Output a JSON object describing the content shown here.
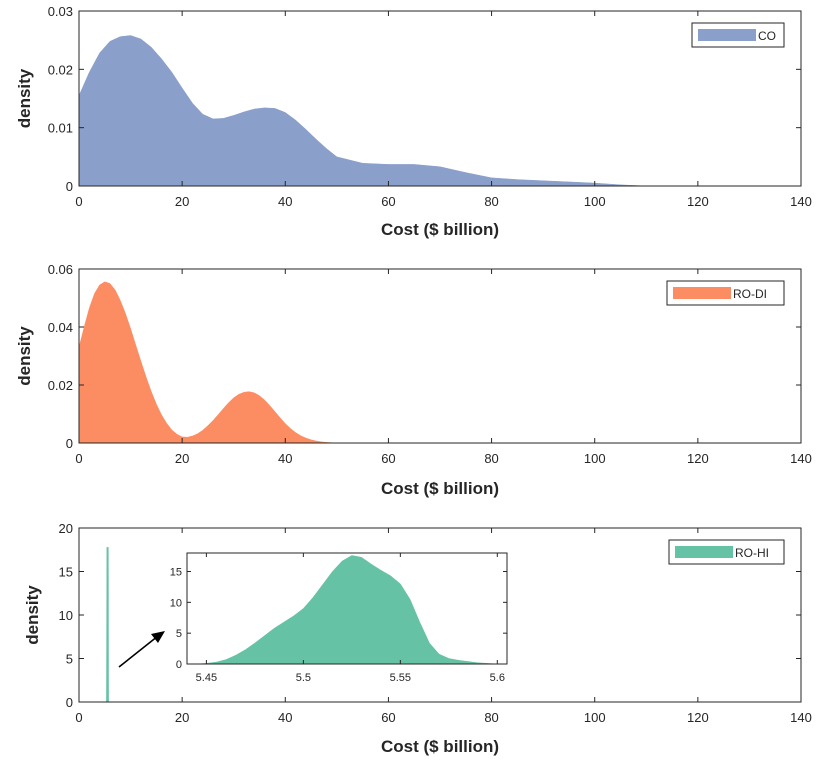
{
  "chart_data": [
    {
      "type": "area",
      "title": "",
      "xlabel": "Cost ($ billion)",
      "ylabel": "density",
      "xlim": [
        0,
        140
      ],
      "ylim": [
        0,
        0.03
      ],
      "xticks": [
        "0",
        "20",
        "40",
        "60",
        "80",
        "100",
        "120",
        "140"
      ],
      "yticks": [
        "0",
        "0.01",
        "0.02",
        "0.03"
      ],
      "legend": {
        "position": "top-right",
        "entries": [
          "CO"
        ]
      },
      "series": [
        {
          "name": "CO",
          "color": "#8B9FCB",
          "x": [
            0,
            2,
            4,
            6,
            8,
            10,
            12,
            14,
            16,
            18,
            20,
            22,
            24,
            26,
            28,
            30,
            32,
            34,
            36,
            38,
            40,
            42,
            44,
            46,
            48,
            50,
            55,
            60,
            65,
            70,
            75,
            80,
            85,
            90,
            95,
            100,
            105,
            110
          ],
          "y": [
            0.0155,
            0.0195,
            0.0228,
            0.0248,
            0.0256,
            0.0258,
            0.0252,
            0.0238,
            0.0218,
            0.0195,
            0.0168,
            0.0142,
            0.0123,
            0.0115,
            0.0116,
            0.0121,
            0.0127,
            0.0132,
            0.0134,
            0.0133,
            0.0126,
            0.0113,
            0.0097,
            0.008,
            0.0064,
            0.005,
            0.0039,
            0.0037,
            0.0037,
            0.0033,
            0.0023,
            0.0014,
            0.0011,
            0.0009,
            0.0007,
            0.0005,
            0.0002,
            0
          ]
        }
      ]
    },
    {
      "type": "area",
      "title": "",
      "xlabel": "Cost ($ billion)",
      "ylabel": "density",
      "xlim": [
        0,
        140
      ],
      "ylim": [
        0,
        0.06
      ],
      "xticks": [
        "0",
        "20",
        "40",
        "60",
        "80",
        "100",
        "120",
        "140"
      ],
      "yticks": [
        "0",
        "0.02",
        "0.04",
        "0.06"
      ],
      "legend": {
        "position": "top-right",
        "entries": [
          "RO-DI"
        ]
      },
      "series": [
        {
          "name": "RO-DI",
          "color": "#FC8D62",
          "x": [
            0,
            1,
            2,
            3,
            4,
            5,
            6,
            7,
            8,
            9,
            10,
            11,
            12,
            13,
            14,
            15,
            16,
            17,
            18,
            19,
            20,
            21,
            22,
            23,
            24,
            25,
            26,
            27,
            28,
            29,
            30,
            31,
            32,
            33,
            34,
            35,
            36,
            37,
            38,
            39,
            40,
            41,
            42,
            43,
            44,
            45,
            46,
            47,
            48,
            50
          ],
          "y": [
            0.033,
            0.04,
            0.0465,
            0.0515,
            0.0545,
            0.0556,
            0.055,
            0.0528,
            0.0492,
            0.0447,
            0.0395,
            0.0338,
            0.0282,
            0.0228,
            0.0178,
            0.0134,
            0.0097,
            0.0068,
            0.0045,
            0.003,
            0.0021,
            0.002,
            0.0024,
            0.0032,
            0.0044,
            0.006,
            0.0078,
            0.0098,
            0.0119,
            0.0139,
            0.0156,
            0.0168,
            0.0175,
            0.0177,
            0.0173,
            0.0163,
            0.0148,
            0.0129,
            0.0108,
            0.0087,
            0.0067,
            0.005,
            0.0036,
            0.0025,
            0.0017,
            0.0011,
            0.0007,
            0.0004,
            0.0002,
            0
          ]
        }
      ]
    },
    {
      "type": "area",
      "title": "",
      "xlabel": "Cost ($ billion)",
      "ylabel": "density",
      "xlim": [
        0,
        140
      ],
      "ylim": [
        0,
        20
      ],
      "xticks": [
        "0",
        "20",
        "40",
        "60",
        "80",
        "100",
        "120",
        "140"
      ],
      "yticks": [
        "0",
        "5",
        "10",
        "15",
        "20"
      ],
      "legend": {
        "position": "top-right",
        "entries": [
          "RO-HI"
        ]
      },
      "series": [
        {
          "name": "RO-HI",
          "color": "#66C2A5",
          "x": [
            5.44,
            5.46,
            5.48,
            5.5,
            5.52,
            5.54,
            5.56,
            5.58,
            5.6
          ],
          "y": [
            0,
            0.3,
            2.5,
            6.5,
            12,
            17.8,
            13.5,
            3,
            0
          ]
        }
      ],
      "inset": {
        "type": "area",
        "xlim": [
          5.44,
          5.605
        ],
        "ylim": [
          0,
          18
        ],
        "xticks": [
          "5.45",
          "5.5",
          "5.55",
          "5.6"
        ],
        "yticks": [
          "0",
          "5",
          "10",
          "15"
        ],
        "series": [
          {
            "name": "RO-HI",
            "color": "#66C2A5",
            "x": [
              5.445,
              5.45,
              5.455,
              5.46,
              5.465,
              5.47,
              5.475,
              5.48,
              5.485,
              5.49,
              5.495,
              5.5,
              5.505,
              5.51,
              5.515,
              5.52,
              5.525,
              5.53,
              5.535,
              5.54,
              5.545,
              5.55,
              5.555,
              5.56,
              5.565,
              5.57,
              5.575,
              5.58,
              5.585,
              5.59,
              5.595,
              5.6
            ],
            "y": [
              0,
              0.1,
              0.3,
              0.7,
              1.4,
              2.3,
              3.4,
              4.6,
              5.8,
              6.8,
              7.8,
              9.0,
              10.8,
              12.9,
              15.0,
              16.7,
              17.6,
              17.3,
              16.2,
              15.2,
              14.3,
              13.0,
              10.5,
              6.8,
              3.4,
              1.6,
              0.9,
              0.6,
              0.4,
              0.2,
              0.1,
              0
            ]
          }
        ]
      }
    }
  ]
}
